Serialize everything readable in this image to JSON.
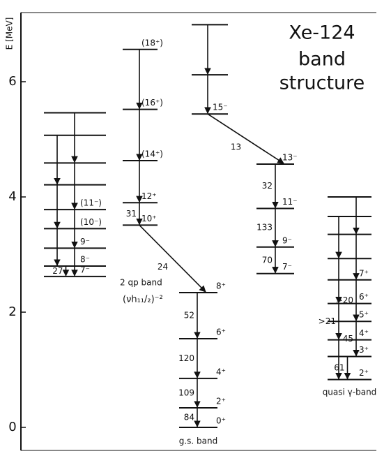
{
  "title": [
    "Xe-124",
    "band",
    "structure"
  ],
  "axis": {
    "label": "E [MeV]",
    "ylim": [
      -0.4,
      7.2
    ],
    "ticks": [
      0,
      2,
      4,
      6
    ]
  },
  "bands": [
    {
      "levels": [
        {
          "energy": 5.46
        },
        {
          "energy": 5.07
        },
        {
          "energy": 4.59
        },
        {
          "energy": 4.21
        },
        {
          "energy": 3.78,
          "label": "(11⁻)"
        },
        {
          "energy": 3.45,
          "label": "(10⁻)"
        },
        {
          "energy": 3.11,
          "label": "9⁻"
        },
        {
          "energy": 2.8,
          "label": "8⁻"
        },
        {
          "energy": 2.62,
          "label": "7⁻"
        }
      ],
      "transitions": [
        {
          "from": 0,
          "to": 2
        },
        {
          "from": 1,
          "to": 3
        },
        {
          "from": 2,
          "to": 4
        },
        {
          "from": 3,
          "to": 5
        },
        {
          "from": 4,
          "to": 6
        },
        {
          "from": 5,
          "to": 7
        },
        {
          "from": 6,
          "to": 8
        },
        {
          "from": 7,
          "to": 8,
          "label": "27"
        }
      ]
    },
    {
      "name": "2 qp band",
      "subname": "(νh₁₁/₂)⁻²",
      "levels": [
        {
          "energy": 6.56,
          "label": "(18⁺)"
        },
        {
          "energy": 5.52,
          "label": "(16⁺)"
        },
        {
          "energy": 4.63,
          "label": "(14⁺)"
        },
        {
          "energy": 3.9,
          "label": "12⁺"
        },
        {
          "energy": 3.51,
          "label": "10⁺"
        }
      ],
      "transitions": [
        {
          "from": 0,
          "to": 1
        },
        {
          "from": 1,
          "to": 2
        },
        {
          "from": 2,
          "to": 3
        },
        {
          "from": 3,
          "to": 4,
          "label": "31"
        }
      ]
    },
    {
      "name": "g.s. band",
      "levels": [
        {
          "energy": 2.34,
          "label": "8⁺"
        },
        {
          "energy": 1.54,
          "label": "6⁺"
        },
        {
          "energy": 0.85,
          "label": "4⁺"
        },
        {
          "energy": 0.34,
          "label": "2⁺"
        },
        {
          "energy": 0,
          "label": "0⁺"
        }
      ],
      "transitions": [
        {
          "from": 0,
          "to": 1,
          "label": "52"
        },
        {
          "from": 1,
          "to": 2,
          "label": "120"
        },
        {
          "from": 2,
          "to": 3,
          "label": "109"
        },
        {
          "from": 3,
          "to": 4,
          "label": "84"
        }
      ]
    },
    {
      "levels": [
        {
          "energy": 6.99
        },
        {
          "energy": 6.12
        },
        {
          "energy": 5.44,
          "label": "15⁻"
        }
      ],
      "transitions": [
        {
          "from": 0,
          "to": 1
        },
        {
          "from": 1,
          "to": 2
        }
      ]
    },
    {
      "levels": [
        {
          "energy": 4.57,
          "label": "13⁻"
        },
        {
          "energy": 3.8,
          "label": "11⁻"
        },
        {
          "energy": 3.13,
          "label": "9⁻"
        },
        {
          "energy": 2.67,
          "label": "7⁻"
        }
      ],
      "transitions": [
        {
          "from": 0,
          "to": 1,
          "label": "32"
        },
        {
          "from": 1,
          "to": 2,
          "label": "133"
        },
        {
          "from": 2,
          "to": 3,
          "label": "70"
        }
      ]
    },
    {
      "name": "quasi γ-band",
      "levels": [
        {
          "energy": 4.0
        },
        {
          "energy": 3.66
        },
        {
          "energy": 3.35
        },
        {
          "energy": 2.93
        },
        {
          "energy": 2.56,
          "label": "7⁺"
        },
        {
          "energy": 2.15,
          "label": "6⁺"
        },
        {
          "energy": 1.84,
          "label": "5⁺"
        },
        {
          "energy": 1.52,
          "label": "4⁺"
        },
        {
          "energy": 1.23,
          "label": "3⁺"
        },
        {
          "energy": 0.83,
          "label": "2⁺"
        }
      ],
      "transitions": [
        {
          "from": 0,
          "to": 2
        },
        {
          "from": 1,
          "to": 3
        },
        {
          "from": 2,
          "to": 4
        },
        {
          "from": 3,
          "to": 5
        },
        {
          "from": 4,
          "to": 6,
          "label": ">20"
        },
        {
          "from": 5,
          "to": 7,
          "label": ">21"
        },
        {
          "from": 6,
          "to": 8,
          "label": "45"
        },
        {
          "from": 7,
          "to": 9
        },
        {
          "from": 8,
          "to": 9,
          "label": "61"
        }
      ]
    }
  ],
  "links": [
    {
      "from": [
        1,
        4
      ],
      "to": [
        2,
        0
      ],
      "label": "24"
    },
    {
      "from": [
        3,
        2
      ],
      "to": [
        4,
        0
      ],
      "label": "13"
    }
  ]
}
